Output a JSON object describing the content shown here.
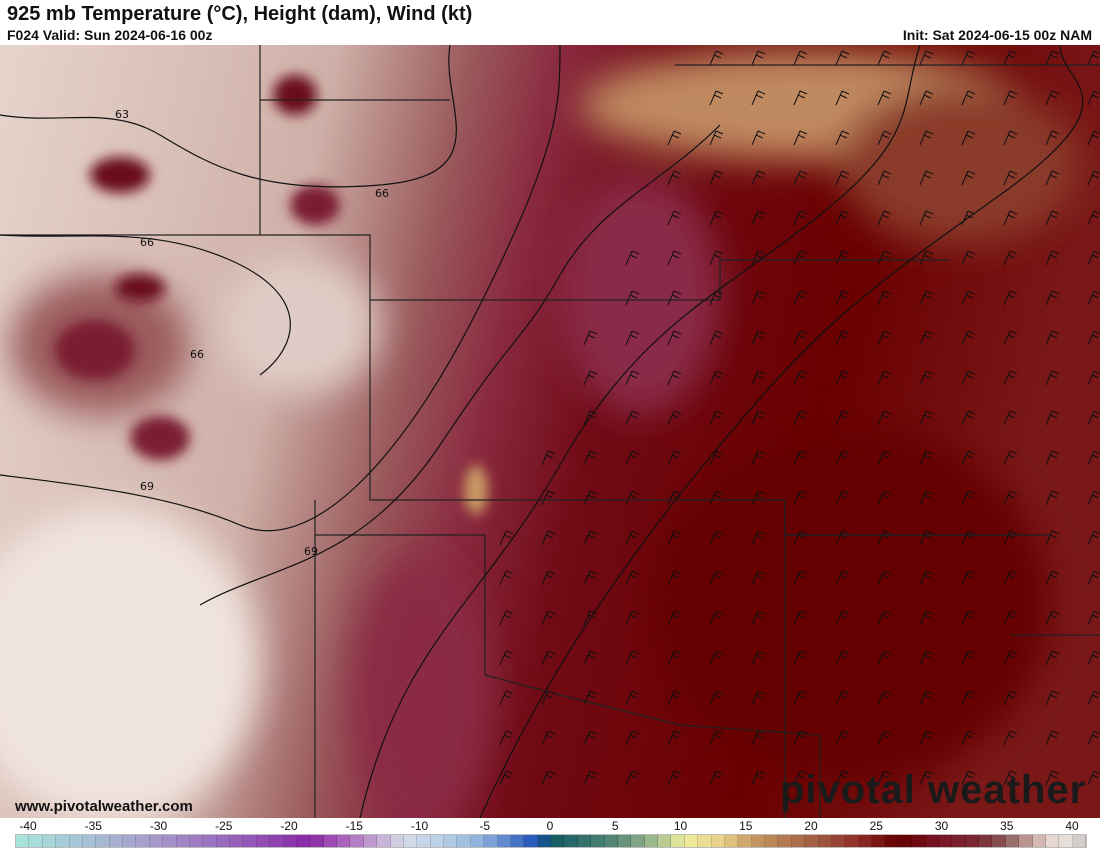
{
  "header": {
    "title": "925 mb Temperature (°C), Height (dam), Wind (kt)",
    "valid": "F024 Valid: Sun 2024-06-16 00z",
    "init": "Init: Sat 2024-06-15 00z NAM"
  },
  "map": {
    "contour_labels": [
      "63",
      "66",
      "66",
      "66",
      "69",
      "69"
    ]
  },
  "watermark": {
    "url": "www.pivotalweather.com",
    "brand": "pivotal weather"
  },
  "colorbar": {
    "ticks": [
      -40,
      -35,
      -30,
      -25,
      -20,
      -15,
      -10,
      -5,
      0,
      5,
      10,
      15,
      20,
      25,
      30,
      35,
      40
    ],
    "stops": [
      [
        -40,
        "#a8e6dc"
      ],
      [
        -35,
        "#a6c4d6"
      ],
      [
        -30,
        "#a89ccc"
      ],
      [
        -25,
        "#9a70c0"
      ],
      [
        -18,
        "#8a28a6"
      ],
      [
        -15,
        "#b070c0"
      ],
      [
        -11,
        "#d4dce6"
      ],
      [
        -8,
        "#b8d0e6"
      ],
      [
        -5,
        "#8aaedc"
      ],
      [
        -1,
        "#1e50b8"
      ],
      [
        0,
        "#0e5a60"
      ],
      [
        5,
        "#5a8a78"
      ],
      [
        8,
        "#a8c090"
      ],
      [
        10,
        "#eeee9a"
      ],
      [
        13,
        "#e8cc88"
      ],
      [
        15,
        "#c89a64"
      ],
      [
        20,
        "#a05a40"
      ],
      [
        23,
        "#902e28"
      ],
      [
        26,
        "#640000"
      ],
      [
        29,
        "#7a1428"
      ],
      [
        32,
        "#7a2a34"
      ],
      [
        34,
        "#8a5a58"
      ],
      [
        36,
        "#c8a8a0"
      ],
      [
        38,
        "#f0e6e0"
      ],
      [
        40,
        "#c8c4c4"
      ]
    ]
  }
}
